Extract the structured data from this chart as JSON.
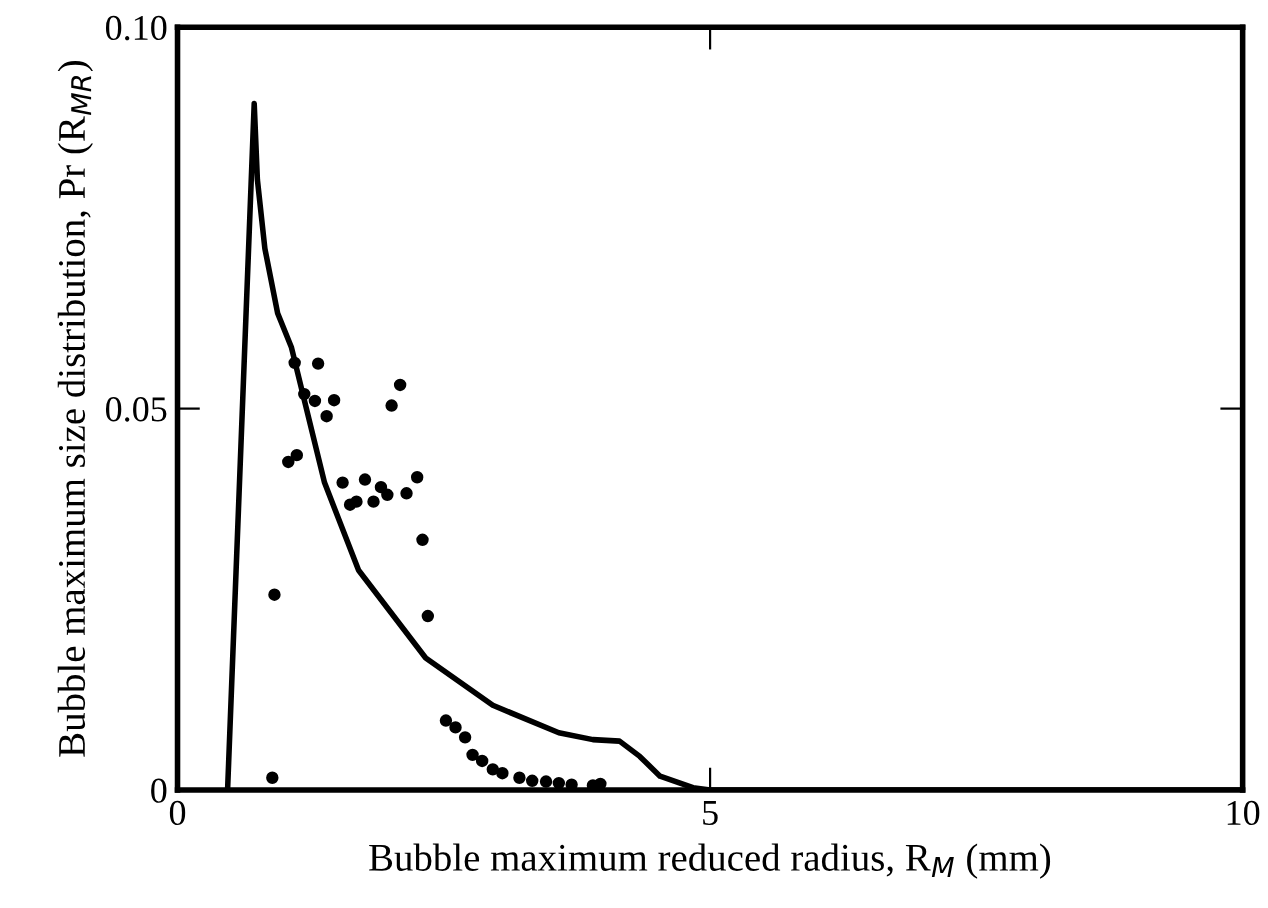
{
  "chart_data": {
    "type": "line",
    "xlabel": "Bubble maximum reduced radius, R$_{M}$ (mm)",
    "ylabel": "Bubble maximum size distribution, Pr (R$_{MR}$)",
    "xlim": [
      0,
      10
    ],
    "ylim": [
      0,
      0.1
    ],
    "xticks": [
      0,
      5,
      10
    ],
    "yticks": [
      0,
      0.05,
      {
        "value": 0.1,
        "label": "0.10"
      }
    ],
    "grid": false,
    "legend": false,
    "series": [
      {
        "color": "#000000",
        "x": [
          0.47,
          0.72,
          0.75,
          0.82,
          0.94,
          1.07,
          1.38,
          1.7,
          2.33,
          2.96,
          3.58,
          3.9,
          4.15,
          4.34,
          4.53,
          4.84,
          5.0,
          10
        ],
        "values": [
          0,
          0.09,
          0.08,
          0.071,
          0.0625,
          0.058,
          0.0403,
          0.0288,
          0.0173,
          0.0111,
          0.0075,
          0.0066,
          0.0064,
          0.0044,
          0.0018,
          0.0003,
          0,
          0
        ]
      },
      {
        "type": "scatter",
        "color": "#000000",
        "marker": "circle",
        "x": [
          1.1,
          1.32,
          1.19,
          1.29,
          1.47,
          1.4,
          2.01,
          2.09,
          1.04,
          1.12,
          1.55,
          1.76,
          1.62,
          1.68,
          1.84,
          1.91,
          1.97,
          2.15,
          2.25,
          2.3,
          2.35,
          0.91,
          0.89,
          2.52,
          2.61,
          2.7,
          2.77,
          2.86,
          2.96,
          3.05,
          3.21,
          3.33,
          3.46,
          3.58,
          3.7,
          3.9,
          3.97
        ],
        "values": [
          0.056,
          0.0559,
          0.0519,
          0.051,
          0.0511,
          0.049,
          0.0504,
          0.0531,
          0.043,
          0.0439,
          0.0403,
          0.0407,
          0.0374,
          0.0378,
          0.0378,
          0.0397,
          0.0387,
          0.0389,
          0.041,
          0.0328,
          0.0228,
          0.0256,
          0.0016,
          0.0091,
          0.0082,
          0.0069,
          0.0046,
          0.0038,
          0.0027,
          0.0022,
          0.0016,
          0.0012,
          0.0011,
          0.0009,
          0.0007,
          0.0006,
          0.0008
        ]
      }
    ]
  }
}
